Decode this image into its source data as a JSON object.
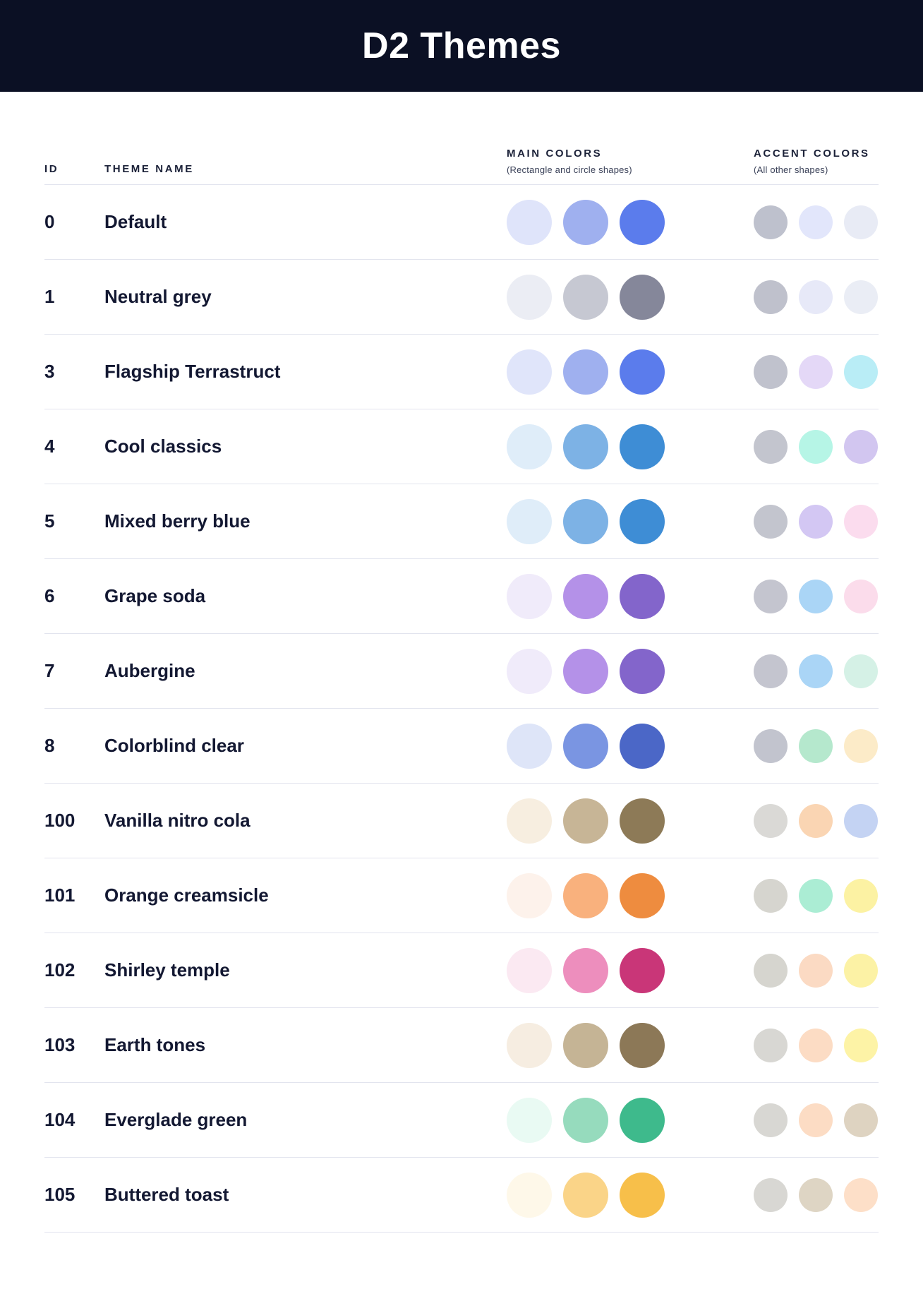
{
  "header": {
    "title": "D2 Themes"
  },
  "table": {
    "columns": {
      "id": "ID",
      "name": "THEME NAME",
      "main": "MAIN COLORS",
      "main_sub": "(Rectangle and circle shapes)",
      "accent": "ACCENT COLORS",
      "accent_sub": "(All other shapes)"
    },
    "rows": [
      {
        "id": "0",
        "name": "Default",
        "main_colors": [
          "#DFE4FA",
          "#9FB0EF",
          "#5B7CEC"
        ],
        "accent_colors": [
          "#BEC1CD",
          "#E2E6FB",
          "#E8EBF5"
        ]
      },
      {
        "id": "1",
        "name": "Neutral grey",
        "main_colors": [
          "#EBEDF4",
          "#C6C8D2",
          "#85879A"
        ],
        "accent_colors": [
          "#BFC1CC",
          "#E7E9F8",
          "#EAEDF5"
        ]
      },
      {
        "id": "3",
        "name": "Flagship Terrastruct",
        "main_colors": [
          "#E0E5FA",
          "#9FB0EF",
          "#5B7CEC"
        ],
        "accent_colors": [
          "#C0C2CD",
          "#E4D8F7",
          "#B9EDF6"
        ]
      },
      {
        "id": "4",
        "name": "Cool classics",
        "main_colors": [
          "#DFEDF9",
          "#7DB2E5",
          "#3E8DD5"
        ],
        "accent_colors": [
          "#C3C5CE",
          "#B6F5E6",
          "#D2C6F0"
        ]
      },
      {
        "id": "5",
        "name": "Mixed berry blue",
        "main_colors": [
          "#DFEDF9",
          "#7DB2E5",
          "#3E8DD5"
        ],
        "accent_colors": [
          "#C3C5CE",
          "#D3C7F3",
          "#FBDCEE"
        ]
      },
      {
        "id": "6",
        "name": "Grape soda",
        "main_colors": [
          "#F0EBFA",
          "#B491E8",
          "#8365CB"
        ],
        "accent_colors": [
          "#C4C5CF",
          "#AAD5F6",
          "#FBDCEB"
        ]
      },
      {
        "id": "7",
        "name": "Aubergine",
        "main_colors": [
          "#F0EBFA",
          "#B491E8",
          "#8365CB"
        ],
        "accent_colors": [
          "#C4C5CF",
          "#AAD5F6",
          "#D5F1E6"
        ]
      },
      {
        "id": "8",
        "name": "Colorblind clear",
        "main_colors": [
          "#DEE5F8",
          "#7A95E2",
          "#4B67C7"
        ],
        "accent_colors": [
          "#C2C4CE",
          "#B5E8CD",
          "#FCEBC8"
        ]
      },
      {
        "id": "100",
        "name": "Vanilla nitro cola",
        "main_colors": [
          "#F7EEE0",
          "#C7B596",
          "#8D7A57"
        ],
        "accent_colors": [
          "#DAD9D6",
          "#FAD5B3",
          "#C4D3F3"
        ]
      },
      {
        "id": "101",
        "name": "Orange creamsicle",
        "main_colors": [
          "#FDF2EB",
          "#F9B17D",
          "#EE8C3F"
        ],
        "accent_colors": [
          "#D6D5CF",
          "#ABEDD4",
          "#FCF2A3"
        ]
      },
      {
        "id": "102",
        "name": "Shirley temple",
        "main_colors": [
          "#FBE9F2",
          "#ED8EBD",
          "#C93678"
        ],
        "accent_colors": [
          "#D6D5CF",
          "#FBDAC3",
          "#FCF2A5"
        ]
      },
      {
        "id": "103",
        "name": "Earth tones",
        "main_colors": [
          "#F6EDE1",
          "#C5B495",
          "#8C7857"
        ],
        "accent_colors": [
          "#D8D7D3",
          "#FCDCC4",
          "#FDF3A6"
        ]
      },
      {
        "id": "104",
        "name": "Everglade green",
        "main_colors": [
          "#E9FAF3",
          "#96DBBD",
          "#3EBA8C"
        ],
        "accent_colors": [
          "#D8D7D3",
          "#FCDCC4",
          "#DED3C1"
        ]
      },
      {
        "id": "105",
        "name": "Buttered toast",
        "main_colors": [
          "#FEF8E9",
          "#FAD488",
          "#F7BF4A"
        ],
        "accent_colors": [
          "#D8D7D3",
          "#DED5C4",
          "#FDDFC8"
        ]
      }
    ]
  }
}
